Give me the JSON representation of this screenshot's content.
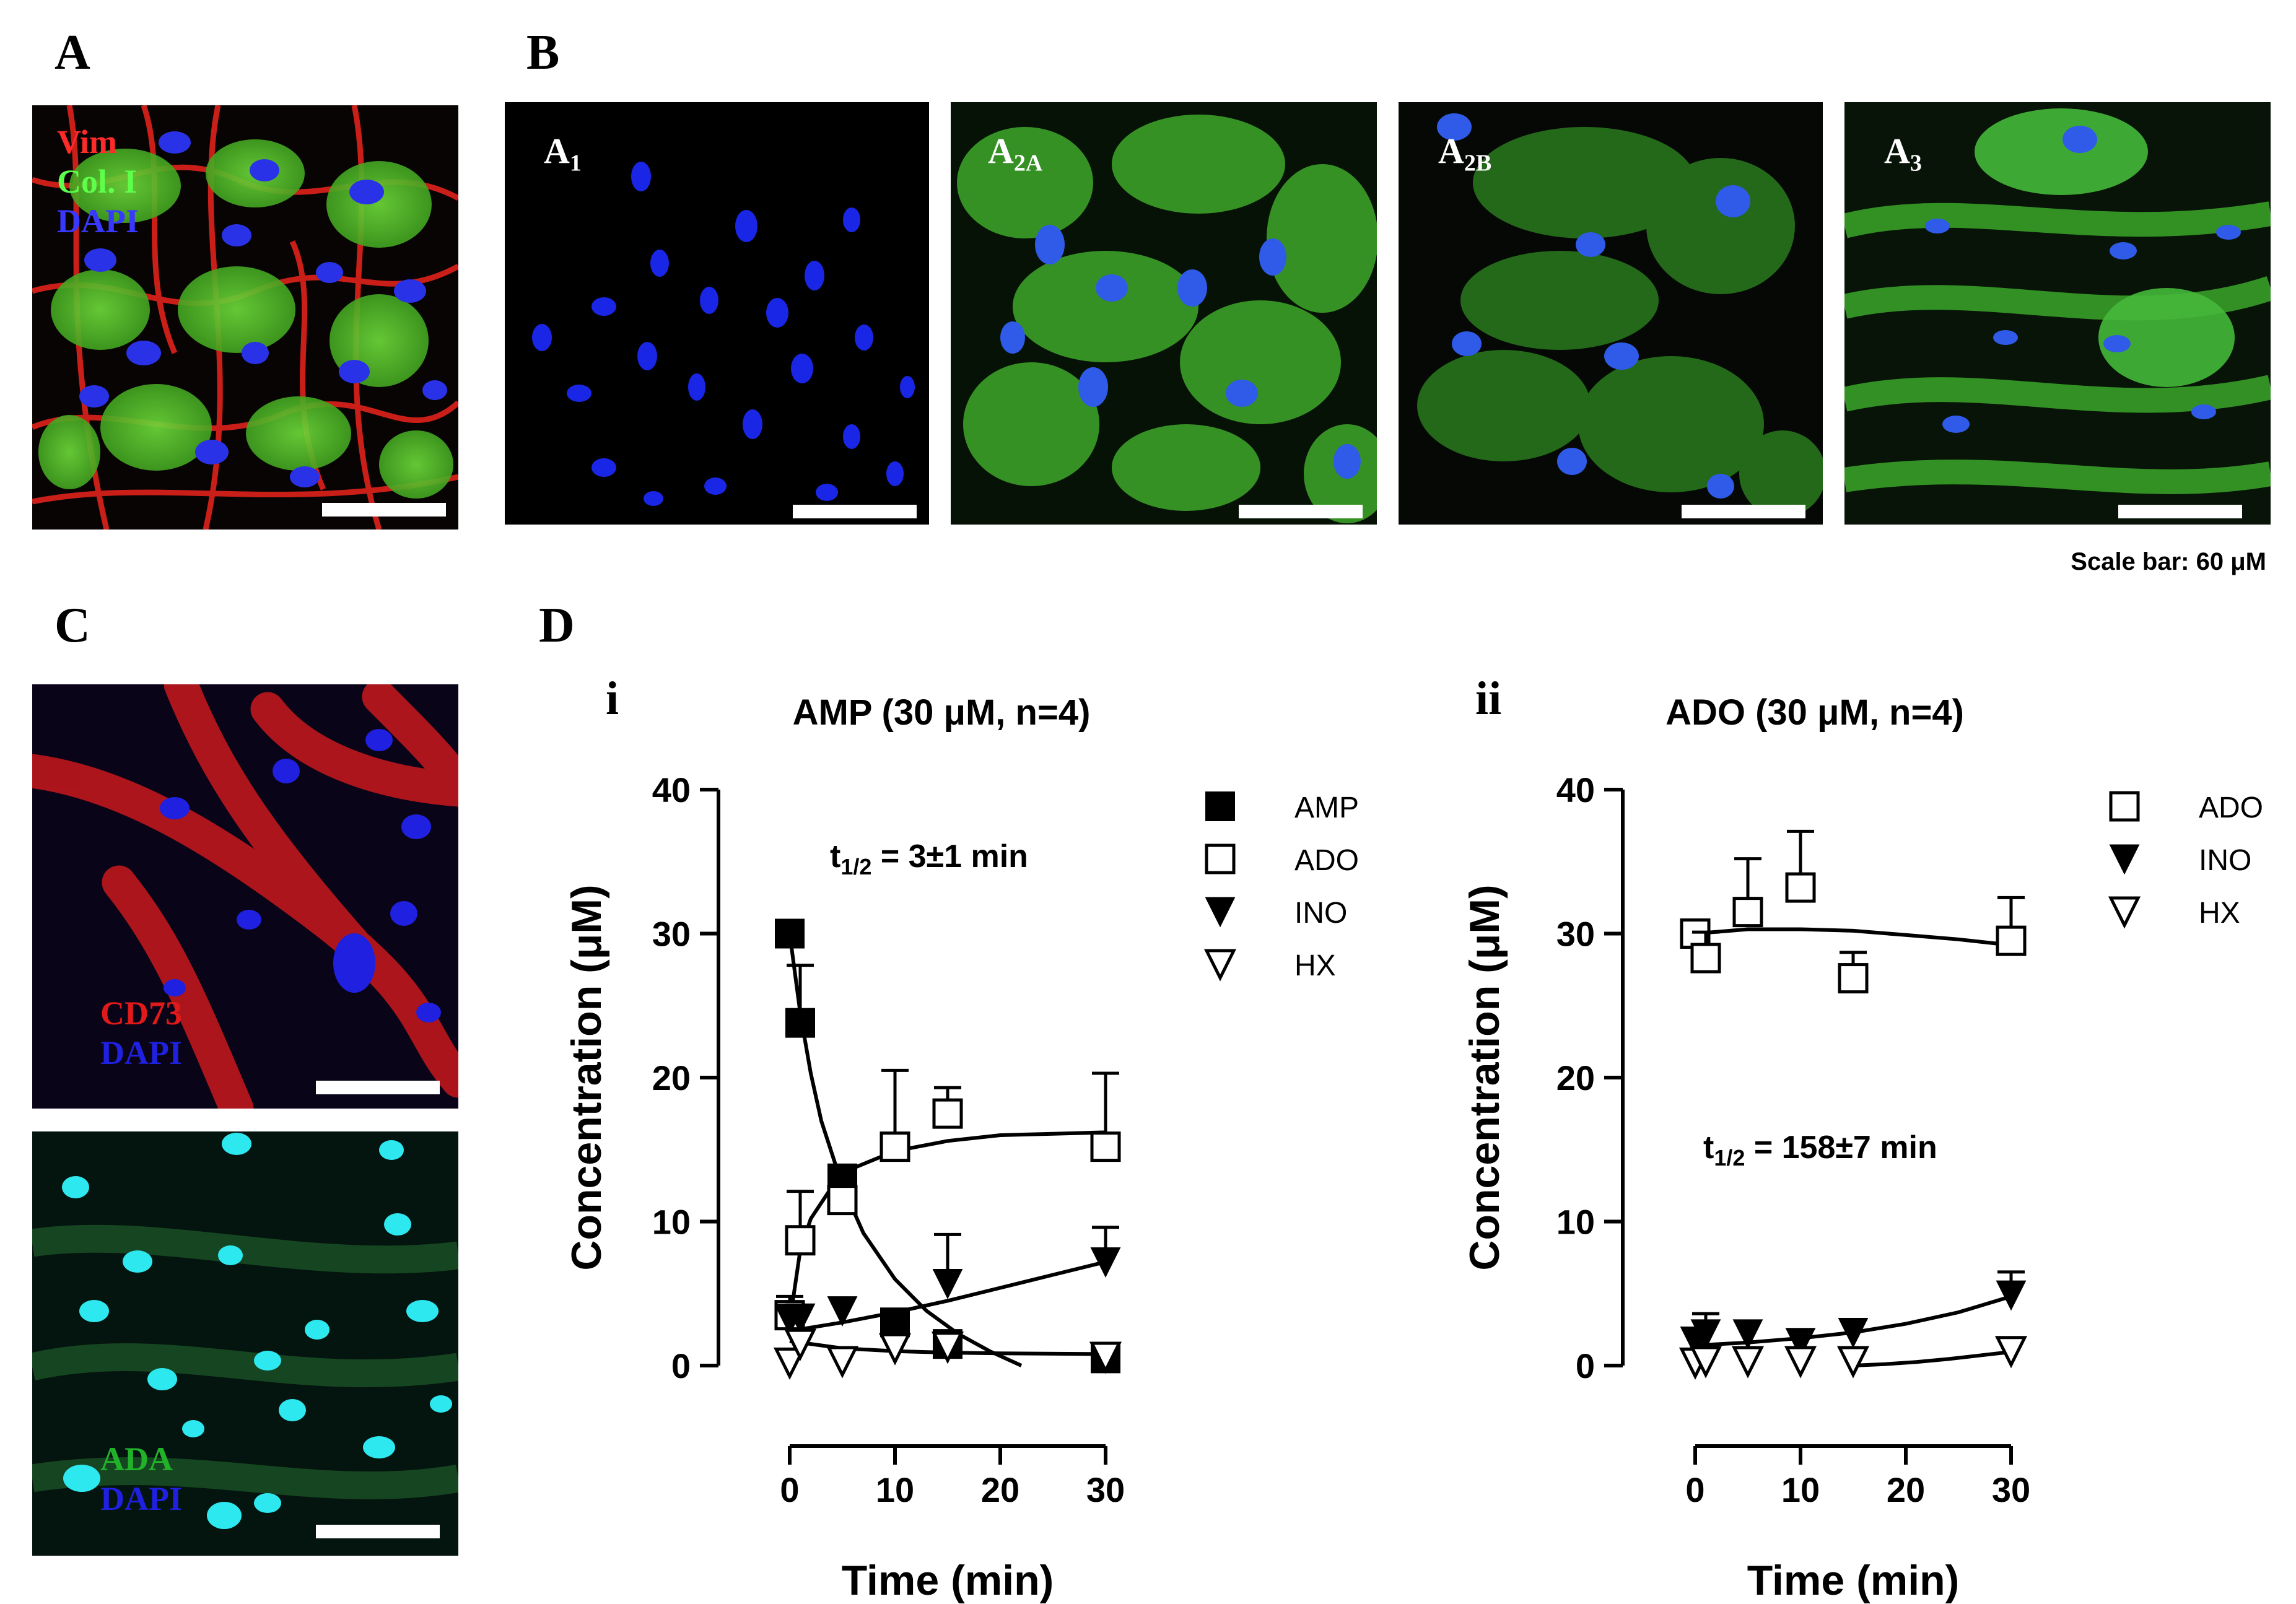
{
  "panel_labels": {
    "a": "A",
    "b": "B",
    "c": "C",
    "d": "D"
  },
  "panel_a": {
    "labels": [
      "Vim",
      "Col. I",
      "DAPI"
    ],
    "colors": [
      "#ff2a2a",
      "#3aff3a",
      "#2a2aff"
    ]
  },
  "panel_b": {
    "receptors": [
      {
        "main": "A",
        "sub": "1"
      },
      {
        "main": "A",
        "sub": "2A"
      },
      {
        "main": "A",
        "sub": "2B"
      },
      {
        "main": "A",
        "sub": "3"
      }
    ],
    "scale_bar_text": "Scale bar: 60 μM"
  },
  "panel_c": {
    "top_labels": [
      "CD73",
      "DAPI"
    ],
    "bottom_labels": [
      "ADA",
      "DAPI"
    ]
  },
  "panel_d": {
    "sub_i": "i",
    "sub_ii": "ii"
  },
  "chart_data": [
    {
      "type": "scatter",
      "title": "AMP (30 μM, n=4)",
      "xlabel": "Time (min)",
      "ylabel": "Concentration (μM)",
      "xlim": [
        0,
        30
      ],
      "ylim": [
        0,
        40
      ],
      "xticks": [
        0,
        10,
        20,
        30
      ],
      "yticks": [
        0,
        10,
        20,
        30,
        40
      ],
      "annotation": {
        "main": "t",
        "sub": "1/2",
        "rest": " = 3±1 min"
      },
      "series": [
        {
          "name": "AMP",
          "marker": "square-filled",
          "points": [
            {
              "x": 0,
              "y": 30,
              "err": 0
            },
            {
              "x": 1,
              "y": 23.8,
              "err": 4
            },
            {
              "x": 5,
              "y": 13,
              "err": 0.8
            },
            {
              "x": 10,
              "y": 3,
              "err": 0
            },
            {
              "x": 15,
              "y": 1.5,
              "err": 0
            },
            {
              "x": 30,
              "y": 0.5,
              "err": 0
            }
          ],
          "fit": [
            [
              0,
              30
            ],
            [
              1,
              24.5
            ],
            [
              2,
              20.3
            ],
            [
              3,
              17
            ],
            [
              5,
              12.5
            ],
            [
              7,
              9.2
            ],
            [
              10,
              6
            ],
            [
              13,
              3.8
            ],
            [
              16,
              2.2
            ],
            [
              19,
              1
            ],
            [
              22,
              0
            ]
          ]
        },
        {
          "name": "ADO",
          "marker": "square-open",
          "points": [
            {
              "x": 0,
              "y": 3.5,
              "err": 1.3
            },
            {
              "x": 1,
              "y": 8.7,
              "err": 3.4
            },
            {
              "x": 5,
              "y": 11.5,
              "err": 2
            },
            {
              "x": 10,
              "y": 15.2,
              "err": 5.3
            },
            {
              "x": 15,
              "y": 17.5,
              "err": 1.8
            },
            {
              "x": 30,
              "y": 15.2,
              "err": 5.1
            }
          ],
          "fit": [
            [
              0,
              3
            ],
            [
              1,
              8
            ],
            [
              2,
              10.2
            ],
            [
              4,
              12.4
            ],
            [
              6,
              13.7
            ],
            [
              10,
              14.9
            ],
            [
              15,
              15.6
            ],
            [
              20,
              16
            ],
            [
              25,
              16.1
            ],
            [
              30,
              16.2
            ]
          ]
        },
        {
          "name": "INO",
          "marker": "triangle-down-filled",
          "points": [
            {
              "x": 0,
              "y": 3.2,
              "err": 1
            },
            {
              "x": 1,
              "y": 3.3,
              "err": 0
            },
            {
              "x": 5,
              "y": 3.8,
              "err": 0
            },
            {
              "x": 10,
              "y": 2.5,
              "err": 0
            },
            {
              "x": 15,
              "y": 5.7,
              "err": 3.4
            },
            {
              "x": 30,
              "y": 7.2,
              "err": 2.4
            }
          ],
          "fit": [
            [
              0,
              2.4
            ],
            [
              5,
              3
            ],
            [
              10,
              3.7
            ],
            [
              15,
              4.5
            ],
            [
              20,
              5.4
            ],
            [
              25,
              6.3
            ],
            [
              30,
              7.2
            ]
          ]
        },
        {
          "name": "HX",
          "marker": "triangle-down-open",
          "points": [
            {
              "x": 0,
              "y": 0.2,
              "err": 0
            },
            {
              "x": 1,
              "y": 1.5,
              "err": 0
            },
            {
              "x": 5,
              "y": 0.3,
              "err": 0
            },
            {
              "x": 10,
              "y": 1.2,
              "err": 1.2
            },
            {
              "x": 15,
              "y": 1.3,
              "err": 0
            },
            {
              "x": 30,
              "y": 0.6,
              "err": 0
            }
          ],
          "fit": [
            [
              0,
              1.7
            ],
            [
              5,
              1.2
            ],
            [
              10,
              1
            ],
            [
              15,
              0.9
            ],
            [
              20,
              0.85
            ],
            [
              30,
              0.8
            ]
          ]
        }
      ]
    },
    {
      "type": "scatter",
      "title": "ADO (30 μM, n=4)",
      "xlabel": "Time (min)",
      "ylabel": "Concentration (μM)",
      "xlim": [
        0,
        30
      ],
      "ylim": [
        0,
        40
      ],
      "xticks": [
        0,
        10,
        20,
        30
      ],
      "yticks": [
        0,
        10,
        20,
        30,
        40
      ],
      "annotation": {
        "main": "t",
        "sub": "1/2",
        "rest": " = 158±7 min"
      },
      "series": [
        {
          "name": "ADO",
          "marker": "square-open",
          "points": [
            {
              "x": 0,
              "y": 30,
              "err": 0
            },
            {
              "x": 1,
              "y": 28.3,
              "err": 1.8
            },
            {
              "x": 5,
              "y": 31.5,
              "err": 3.7
            },
            {
              "x": 10,
              "y": 33.2,
              "err": 3.9
            },
            {
              "x": 15,
              "y": 26.9,
              "err": 1.8
            },
            {
              "x": 30,
              "y": 29.5,
              "err": 3
            }
          ],
          "fit": [
            [
              0,
              30
            ],
            [
              5,
              30.3
            ],
            [
              10,
              30.3
            ],
            [
              15,
              30.2
            ],
            [
              20,
              29.9
            ],
            [
              25,
              29.6
            ],
            [
              30,
              29.2
            ]
          ]
        },
        {
          "name": "INO",
          "marker": "triangle-down-filled",
          "points": [
            {
              "x": 0,
              "y": 1.7,
              "err": 0
            },
            {
              "x": 1,
              "y": 2.2,
              "err": 1.4
            },
            {
              "x": 5,
              "y": 2.2,
              "err": 0
            },
            {
              "x": 10,
              "y": 1.6,
              "err": 0
            },
            {
              "x": 15,
              "y": 2.3,
              "err": 0
            },
            {
              "x": 30,
              "y": 4.9,
              "err": 1.6
            }
          ],
          "fit": [
            [
              0,
              1.4
            ],
            [
              5,
              1.6
            ],
            [
              10,
              1.9
            ],
            [
              15,
              2.3
            ],
            [
              20,
              2.9
            ],
            [
              25,
              3.7
            ],
            [
              30,
              4.8
            ]
          ]
        },
        {
          "name": "HX",
          "marker": "triangle-down-open",
          "points": [
            {
              "x": 0,
              "y": 0.2,
              "err": 0
            },
            {
              "x": 1,
              "y": 0.3,
              "err": 0
            },
            {
              "x": 5,
              "y": 0.3,
              "err": 0
            },
            {
              "x": 10,
              "y": 0.3,
              "err": 0
            },
            {
              "x": 15,
              "y": 0.3,
              "err": 0
            },
            {
              "x": 30,
              "y": 1,
              "err": 0
            }
          ],
          "fit": [
            [
              15,
              0
            ],
            [
              18,
              0.1
            ],
            [
              21,
              0.25
            ],
            [
              24,
              0.45
            ],
            [
              27,
              0.7
            ],
            [
              30,
              0.95
            ]
          ]
        }
      ]
    }
  ]
}
